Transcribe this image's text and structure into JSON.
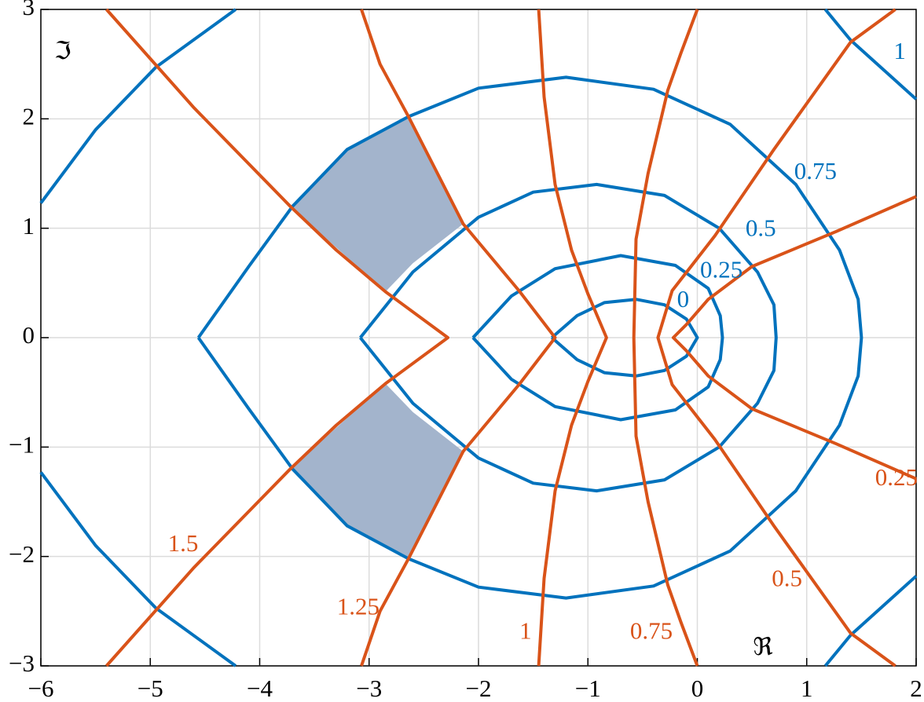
{
  "chart_data": {
    "type": "contour",
    "xlabel": "ℜ",
    "ylabel": "ℑ",
    "xlim": [
      -6,
      2
    ],
    "ylim": [
      -3,
      3
    ],
    "xticks": [
      {
        "value": -6,
        "label": "−6"
      },
      {
        "value": -5,
        "label": "−5"
      },
      {
        "value": -4,
        "label": "−4"
      },
      {
        "value": -3,
        "label": "−3"
      },
      {
        "value": -2,
        "label": "−2"
      },
      {
        "value": -1,
        "label": "−1"
      },
      0,
      1,
      2
    ],
    "yticks": [
      {
        "value": -3,
        "label": "−3"
      },
      {
        "value": -2,
        "label": "−2"
      },
      {
        "value": -1,
        "label": "−1"
      },
      0,
      1,
      2,
      3
    ],
    "grid": true,
    "shaded_regions": [
      {
        "color": "#a3b4cc",
        "x": [
          -3.72,
          -3.2,
          -2.64,
          -2.14,
          -2.6,
          -2.85
        ],
        "y": [
          1.2,
          1.72,
          2.02,
          1.04,
          0.68,
          0.42
        ]
      },
      {
        "color": "#a3b4cc",
        "x": [
          -3.72,
          -3.2,
          -2.64,
          -2.14,
          -2.6,
          -2.85
        ],
        "y": [
          -1.2,
          -1.72,
          -2.02,
          -1.04,
          -0.68,
          -0.42
        ]
      }
    ],
    "series": [
      {
        "name": "0",
        "color": "#0072bd",
        "x": [
          -1.33,
          -1.1,
          -0.85,
          -0.56,
          -0.3,
          -0.1,
          0,
          -0.1,
          -0.3,
          -0.56,
          -0.85,
          -1.1,
          -1.33
        ],
        "y": [
          0,
          0.2,
          0.32,
          0.35,
          0.3,
          0.17,
          0,
          -0.17,
          -0.3,
          -0.35,
          -0.32,
          -0.2,
          0
        ]
      },
      {
        "name": "0.25",
        "color": "#0072bd",
        "x": [
          -2.05,
          -1.7,
          -1.3,
          -0.7,
          -0.2,
          0.1,
          0.21,
          0.23,
          0.21,
          0.1,
          -0.2,
          -0.7,
          -1.3,
          -1.7,
          -2.05
        ],
        "y": [
          0,
          0.38,
          0.63,
          0.75,
          0.66,
          0.45,
          0.2,
          0,
          -0.2,
          -0.45,
          -0.66,
          -0.75,
          -0.63,
          -0.38,
          0
        ]
      },
      {
        "name": "0.5",
        "color": "#0072bd",
        "x": [
          -3.08,
          -2.6,
          -2.0,
          -1.5,
          -0.92,
          -0.3,
          0.2,
          0.55,
          0.7,
          0.72,
          0.7,
          0.55,
          0.2,
          -0.3,
          -0.92,
          -1.5,
          -2.0,
          -2.6,
          -3.08
        ],
        "y": [
          0,
          0.6,
          1.1,
          1.33,
          1.4,
          1.3,
          1.0,
          0.6,
          0.3,
          0,
          -0.3,
          -0.6,
          -1.0,
          -1.3,
          -1.4,
          -1.33,
          -1.1,
          -0.6,
          0
        ]
      },
      {
        "name": "0.75",
        "color": "#0072bd",
        "x": [
          -4.56,
          -4.1,
          -3.7,
          -3.2,
          -2.64,
          -2.0,
          -1.2,
          -0.4,
          0.3,
          0.9,
          1.3,
          1.47,
          1.5,
          1.47,
          1.3,
          0.9,
          0.3,
          -0.4,
          -1.2,
          -2.0,
          -2.64,
          -3.2,
          -3.7,
          -4.1,
          -4.56
        ],
        "y": [
          0,
          0.65,
          1.2,
          1.72,
          2.02,
          2.28,
          2.38,
          2.27,
          1.95,
          1.4,
          0.8,
          0.35,
          0,
          -0.35,
          -0.8,
          -1.4,
          -1.95,
          -2.27,
          -2.38,
          -2.28,
          -2.02,
          -1.72,
          -1.2,
          -0.65,
          0
        ]
      },
      {
        "name": "1",
        "color": "#0072bd",
        "x": [
          -6,
          -5.5,
          -4.95,
          -4.22,
          null,
          -6,
          -5.5,
          -4.95,
          -4.22,
          null,
          1.17,
          1.4,
          2,
          null,
          1.17,
          1.4,
          2
        ],
        "y": [
          1.23,
          1.9,
          2.47,
          3,
          null,
          -1.23,
          -1.9,
          -2.47,
          -3,
          null,
          3,
          2.72,
          2.18,
          null,
          -3,
          -2.72,
          -2.18
        ]
      },
      {
        "name": "0.25",
        "color": "#d95319",
        "x": [
          2,
          1.27,
          0.5,
          0.1,
          -0.1,
          -0.22,
          -0.1,
          0.1,
          0.5,
          1.27,
          2
        ],
        "y": [
          1.29,
          0.97,
          0.65,
          0.35,
          0.12,
          0,
          -0.12,
          -0.35,
          -0.65,
          -0.97,
          -1.29
        ]
      },
      {
        "name": "0.5",
        "color": "#d95319",
        "x": [
          1.81,
          1.4,
          0.7,
          0.16,
          -0.23,
          -0.36,
          -0.23,
          0.16,
          0.7,
          1.4,
          1.81
        ],
        "y": [
          3,
          2.7,
          1.72,
          0.93,
          0.43,
          0,
          -0.43,
          -0.93,
          -1.72,
          -2.7,
          -3
        ]
      },
      {
        "name": "0.75",
        "color": "#d95319",
        "x": [
          0,
          -0.15,
          -0.27,
          -0.45,
          -0.56,
          -0.58,
          -0.56,
          -0.45,
          -0.27,
          -0.15,
          0
        ],
        "y": [
          3,
          2.6,
          2.26,
          1.5,
          0.9,
          0,
          -0.9,
          -1.5,
          -2.26,
          -2.6,
          -3
        ]
      },
      {
        "name": "1",
        "color": "#d95319",
        "x": [
          -1.45,
          -1.4,
          -1.3,
          -1.15,
          -1.0,
          -0.83,
          -1.0,
          -1.15,
          -1.3,
          -1.4,
          -1.45
        ],
        "y": [
          3,
          2.2,
          1.4,
          0.8,
          0.4,
          0,
          -0.4,
          -0.8,
          -1.4,
          -2.2,
          -3
        ]
      },
      {
        "name": "1.25",
        "color": "#d95319",
        "x": [
          -3.07,
          -2.9,
          -2.64,
          -2.4,
          -2.14,
          -1.63,
          -1.3,
          -1.63,
          -2.14,
          -2.4,
          -2.64,
          -2.9,
          -3.07
        ],
        "y": [
          3,
          2.5,
          2.02,
          1.55,
          1.04,
          0.43,
          0,
          -0.43,
          -1.04,
          -1.55,
          -2.02,
          -2.5,
          -3
        ]
      },
      {
        "name": "1.5",
        "color": "#d95319",
        "x": [
          -5.4,
          -4.6,
          -3.72,
          -3.3,
          -2.85,
          -2.28,
          -2.85,
          -3.3,
          -3.72,
          -4.6,
          -5.4
        ],
        "y": [
          3,
          2.1,
          1.2,
          0.8,
          0.42,
          0,
          -0.42,
          -0.8,
          -1.2,
          -2.1,
          -3
        ]
      }
    ]
  }
}
